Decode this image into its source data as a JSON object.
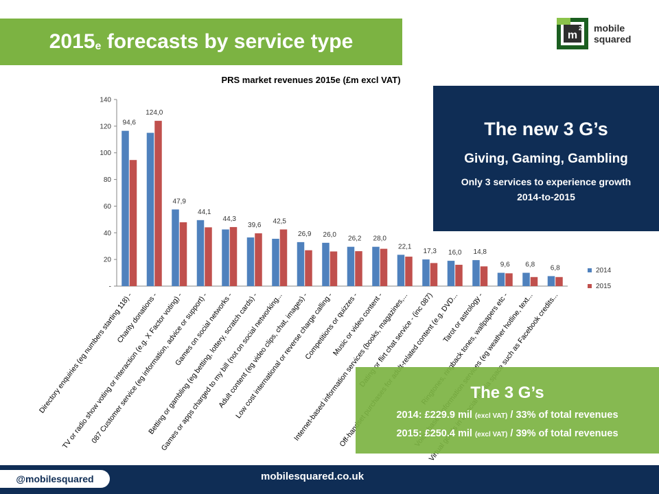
{
  "header": {
    "title_main_1": "2015",
    "title_sub": "e",
    "title_main_2": " forecasts by service type"
  },
  "logo": {
    "text_line1": "mobile",
    "text_line2": "squared",
    "mark": "m",
    "superscript": "2"
  },
  "colors": {
    "green": "#7cb342",
    "navy": "#0f2d55",
    "series_2014": "#4f81bd",
    "series_2015": "#c0504d"
  },
  "chart_data": {
    "type": "bar",
    "title": "PRS market revenues 2015e (£m excl VAT)",
    "categories": [
      "Directory enquiries (eg numbers starting 118) -",
      "Charity donations -",
      "TV or radio show voting or interaction (e.g. X Factor voting) -",
      "087 Customer service (eg information, advice or support) -",
      "Games on social networks -",
      "Betting or gambling (eg betting, lottery, scratch cards) -",
      "Games or apps charged to my bill (not on social networking...",
      "Adult content (eg video clips, chat, images) -",
      "Low cost international or reverse charge calling -",
      "Competitions or quizzes -",
      "Music or video content -",
      "Internet-based information services (books, magazines,...",
      "Dating or flirt chat service - (inc 087)",
      "Off-handset purchases for adult-related content (e.g. DVD...",
      "Tarot or astrology -",
      "Ringtones, ringback tones, wallpapers etc -",
      "Voice-based information services (eg weather hotline, text...",
      "Virtual goods in a social media space such as Facebook credits..."
    ],
    "series": [
      {
        "name": "2014",
        "values": [
          116.5,
          115.0,
          57.5,
          49.5,
          42.5,
          36.5,
          35.5,
          33.0,
          32.5,
          29.5,
          29.5,
          23.5,
          20.0,
          19.0,
          19.5,
          10.0,
          10.0,
          7.5
        ]
      },
      {
        "name": "2015",
        "values": [
          94.6,
          124.0,
          47.9,
          44.1,
          44.3,
          39.6,
          42.5,
          26.9,
          26.0,
          26.2,
          28.0,
          22.1,
          17.3,
          16.0,
          14.8,
          9.6,
          6.8,
          6.8
        ]
      }
    ],
    "data_labels": [
      "94,6",
      "124,0",
      "47,9",
      "44,1",
      "44,3",
      "39,6",
      "42,5",
      "26,9",
      "26,0",
      "26,2",
      "28,0",
      "22,1",
      "17,3",
      "16,0",
      "14,8",
      "9,6",
      "6,8",
      "6,8"
    ],
    "y_ticks": [
      "-",
      "20",
      "40",
      "60",
      "80",
      "100",
      "120",
      "140"
    ],
    "ylim": [
      0,
      140
    ],
    "legend_position": "right",
    "grid": false
  },
  "box_3g": {
    "heading": "The new 3 G’s",
    "subheading": "Giving, Gaming, Gambling",
    "line1": "Only 3 services to experience growth",
    "line2": "2014-to-2015"
  },
  "box_g": {
    "heading": "The 3 G’s",
    "l1_a": "2014: £229.9 mil ",
    "l1_small": "(excl VAT)",
    "l1_b": " / 33% of total revenues",
    "l2_a": "2015: £250.4 mil ",
    "l2_small": "(excl VAT)",
    "l2_b": " / 39% of total revenues"
  },
  "footer": {
    "handle": "@mobilesquared",
    "site": "mobilesquared.co.uk"
  }
}
